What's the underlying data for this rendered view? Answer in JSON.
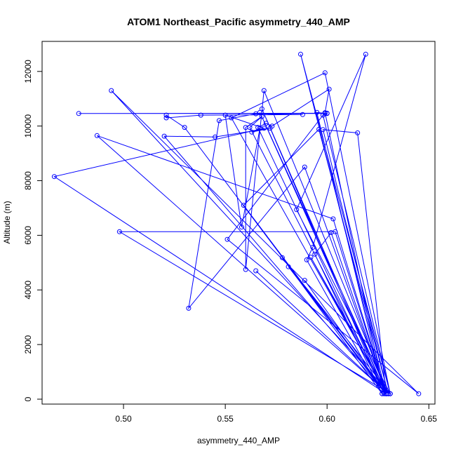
{
  "chart_data": {
    "type": "scatter",
    "title": "ATOM1 Northeast_Pacific asymmetry_440_AMP",
    "xlabel": "asymmetry_440_AMP",
    "ylabel": "Altitude (m)",
    "xlim": [
      0.46,
      0.653
    ],
    "ylim": [
      -180,
      13100
    ],
    "x_ticks": [
      0.5,
      0.55,
      0.6,
      0.65
    ],
    "x_tick_labels": [
      "0.50",
      "0.55",
      "0.60",
      "0.65"
    ],
    "y_ticks": [
      0,
      2000,
      4000,
      6000,
      8000,
      10000,
      12000
    ],
    "y_tick_labels": [
      "0",
      "2000",
      "4000",
      "6000",
      "8000",
      "10000",
      "12000"
    ],
    "connected": true,
    "grid": false,
    "series": [
      {
        "color": "#0000ff",
        "marker": "open-circle",
        "x": [
          0.6,
          0.478,
          0.6,
          0.599,
          0.595,
          0.628,
          0.599,
          0.601,
          0.573,
          0.57,
          0.566,
          0.628,
          0.568,
          0.629,
          0.562,
          0.568,
          0.56,
          0.56,
          0.569,
          0.63,
          0.565,
          0.63,
          0.567,
          0.629,
          0.603,
          0.487,
          0.63,
          0.596,
          0.559,
          0.629,
          0.553,
          0.599,
          0.631,
          0.598,
          0.551,
          0.645,
          0.494,
          0.631,
          0.628,
          0.53,
          0.521,
          0.521,
          0.538,
          0.588,
          0.565,
          0.547,
          0.532,
          0.589,
          0.629,
          0.602,
          0.594,
          0.627,
          0.629,
          0.604,
          0.498,
          0.631,
          0.585,
          0.619,
          0.593,
          0.59,
          0.627,
          0.578,
          0.631,
          0.587,
          0.629,
          0.52,
          0.545,
          0.572,
          0.563,
          0.567,
          0.558,
          0.55,
          0.569,
          0.466,
          0.629,
          0.615,
          0.598,
          0.63,
          0.592,
          0.629,
          0.581,
          0.629,
          0.589
        ],
        "y": [
          10460,
          10460,
          10470,
          10460,
          10500,
          200,
          10490,
          11350,
          10000,
          10100,
          9950,
          200,
          10630,
          200,
          9950,
          10350,
          9950,
          4750,
          11300,
          200,
          4700,
          200,
          10500,
          200,
          6600,
          9650,
          200,
          9880,
          7100,
          200,
          10300,
          11950,
          200,
          10400,
          5850,
          200,
          11300,
          200,
          250,
          9950,
          10400,
          10300,
          10400,
          10420,
          10450,
          10200,
          3330,
          8500,
          200,
          6100,
          5310,
          200,
          200,
          6130,
          6130,
          200,
          6940,
          12630,
          5560,
          5100,
          200,
          5180,
          200,
          12630,
          200,
          9630,
          9600,
          9920,
          9780,
          9920,
          6300,
          10400,
          9920,
          8150,
          200,
          9750,
          9870,
          200,
          5200,
          200,
          4850,
          200,
          4350
        ]
      }
    ]
  }
}
